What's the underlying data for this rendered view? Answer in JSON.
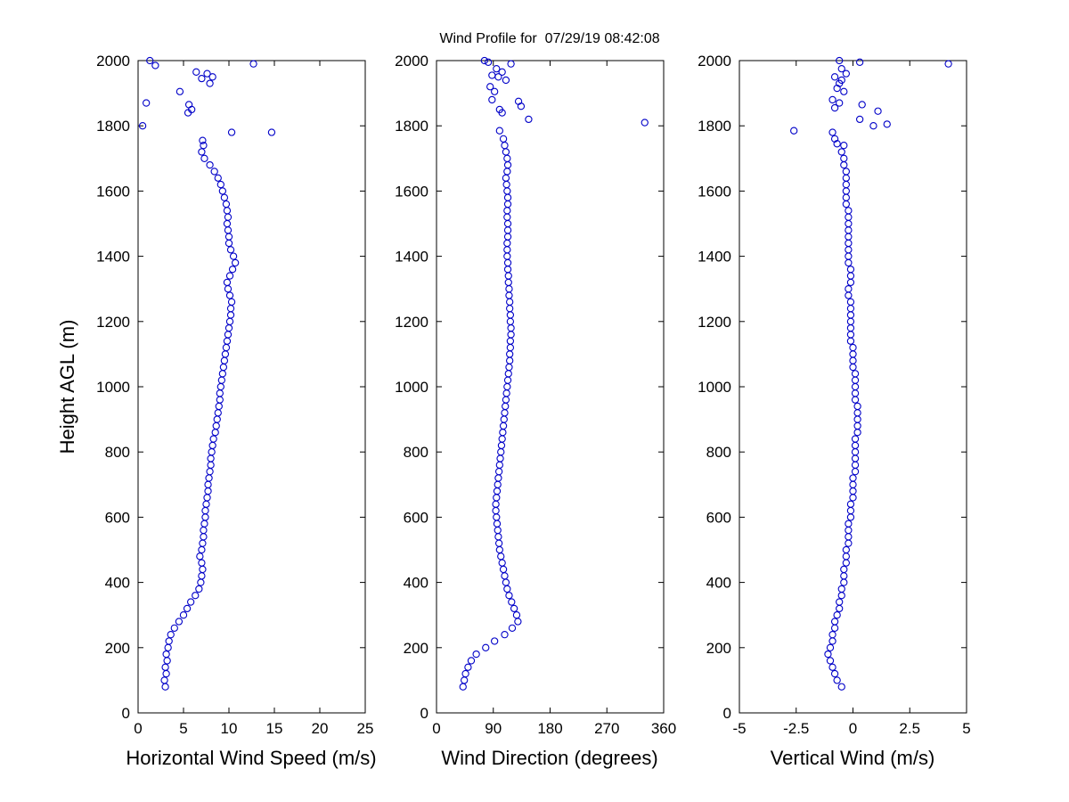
{
  "figure": {
    "title": "Wind Profile for  07/29/19 08:42:08",
    "ylabel": "Height AGL (m)"
  },
  "chart_data": [
    {
      "type": "scatter",
      "xlabel": "Horizontal Wind Speed (m/s)",
      "ylabel": "Height AGL (m)",
      "xlim": [
        0,
        25
      ],
      "ylim": [
        0,
        2000
      ],
      "xticks": [
        0,
        5,
        10,
        15,
        20,
        25
      ],
      "yticks": [
        0,
        200,
        400,
        600,
        800,
        1000,
        1200,
        1400,
        1600,
        1800,
        2000
      ],
      "marker": "open-circle",
      "marker_color": "#0000C8",
      "points": [
        [
          3.0,
          80
        ],
        [
          2.9,
          100
        ],
        [
          3.1,
          120
        ],
        [
          3.0,
          140
        ],
        [
          3.2,
          160
        ],
        [
          3.1,
          180
        ],
        [
          3.3,
          200
        ],
        [
          3.4,
          220
        ],
        [
          3.6,
          240
        ],
        [
          4.0,
          260
        ],
        [
          4.5,
          280
        ],
        [
          5.0,
          300
        ],
        [
          5.4,
          320
        ],
        [
          5.8,
          340
        ],
        [
          6.3,
          360
        ],
        [
          6.7,
          380
        ],
        [
          6.9,
          400
        ],
        [
          7.0,
          420
        ],
        [
          7.1,
          440
        ],
        [
          7.0,
          460
        ],
        [
          6.8,
          480
        ],
        [
          7.0,
          500
        ],
        [
          7.1,
          520
        ],
        [
          7.2,
          540
        ],
        [
          7.2,
          560
        ],
        [
          7.3,
          580
        ],
        [
          7.4,
          600
        ],
        [
          7.4,
          620
        ],
        [
          7.5,
          640
        ],
        [
          7.6,
          660
        ],
        [
          7.7,
          680
        ],
        [
          7.7,
          700
        ],
        [
          7.8,
          720
        ],
        [
          7.9,
          740
        ],
        [
          8.0,
          760
        ],
        [
          8.0,
          780
        ],
        [
          8.1,
          800
        ],
        [
          8.2,
          820
        ],
        [
          8.3,
          840
        ],
        [
          8.5,
          860
        ],
        [
          8.6,
          880
        ],
        [
          8.7,
          900
        ],
        [
          8.8,
          920
        ],
        [
          8.9,
          940
        ],
        [
          9.0,
          960
        ],
        [
          9.0,
          980
        ],
        [
          9.1,
          1000
        ],
        [
          9.2,
          1020
        ],
        [
          9.3,
          1040
        ],
        [
          9.4,
          1060
        ],
        [
          9.5,
          1080
        ],
        [
          9.6,
          1100
        ],
        [
          9.7,
          1120
        ],
        [
          9.8,
          1140
        ],
        [
          9.9,
          1160
        ],
        [
          10.0,
          1180
        ],
        [
          10.1,
          1200
        ],
        [
          10.2,
          1220
        ],
        [
          10.2,
          1240
        ],
        [
          10.3,
          1260
        ],
        [
          10.1,
          1280
        ],
        [
          9.9,
          1300
        ],
        [
          9.8,
          1320
        ],
        [
          10.1,
          1340
        ],
        [
          10.4,
          1360
        ],
        [
          10.7,
          1380
        ],
        [
          10.5,
          1400
        ],
        [
          10.2,
          1420
        ],
        [
          10.0,
          1440
        ],
        [
          10.0,
          1460
        ],
        [
          9.9,
          1480
        ],
        [
          9.8,
          1500
        ],
        [
          9.9,
          1520
        ],
        [
          9.8,
          1540
        ],
        [
          9.7,
          1560
        ],
        [
          9.5,
          1580
        ],
        [
          9.3,
          1600
        ],
        [
          9.1,
          1620
        ],
        [
          8.8,
          1640
        ],
        [
          8.4,
          1660
        ],
        [
          7.9,
          1680
        ],
        [
          7.3,
          1700
        ],
        [
          7.0,
          1720
        ],
        [
          7.2,
          1740
        ],
        [
          7.1,
          1755
        ],
        [
          10.3,
          1780
        ],
        [
          14.7,
          1780
        ],
        [
          0.5,
          1800
        ],
        [
          5.5,
          1840
        ],
        [
          5.9,
          1850
        ],
        [
          5.6,
          1865
        ],
        [
          0.9,
          1870
        ],
        [
          4.6,
          1905
        ],
        [
          7.9,
          1930
        ],
        [
          7.0,
          1945
        ],
        [
          8.2,
          1950
        ],
        [
          7.6,
          1960
        ],
        [
          6.4,
          1965
        ],
        [
          12.7,
          1990
        ],
        [
          1.9,
          1985
        ],
        [
          1.3,
          2000
        ]
      ]
    },
    {
      "type": "scatter",
      "xlabel": "Wind Direction (degrees)",
      "ylabel": "Height AGL (m)",
      "xlim": [
        0,
        360
      ],
      "ylim": [
        0,
        2000
      ],
      "xticks": [
        0,
        90,
        180,
        270,
        360
      ],
      "yticks": [
        0,
        200,
        400,
        600,
        800,
        1000,
        1200,
        1400,
        1600,
        1800,
        2000
      ],
      "marker": "open-circle",
      "marker_color": "#0000C8",
      "points": [
        [
          42,
          80
        ],
        [
          44,
          100
        ],
        [
          46,
          120
        ],
        [
          50,
          140
        ],
        [
          55,
          160
        ],
        [
          63,
          180
        ],
        [
          78,
          200
        ],
        [
          92,
          220
        ],
        [
          108,
          240
        ],
        [
          120,
          260
        ],
        [
          129,
          280
        ],
        [
          127,
          300
        ],
        [
          123,
          320
        ],
        [
          119,
          340
        ],
        [
          115,
          360
        ],
        [
          112,
          380
        ],
        [
          110,
          400
        ],
        [
          108,
          420
        ],
        [
          106,
          440
        ],
        [
          104,
          460
        ],
        [
          102,
          480
        ],
        [
          100,
          500
        ],
        [
          99,
          520
        ],
        [
          98,
          540
        ],
        [
          97,
          560
        ],
        [
          96,
          580
        ],
        [
          95,
          600
        ],
        [
          94,
          620
        ],
        [
          94,
          640
        ],
        [
          95,
          660
        ],
        [
          96,
          680
        ],
        [
          97,
          700
        ],
        [
          98,
          720
        ],
        [
          99,
          740
        ],
        [
          100,
          760
        ],
        [
          101,
          780
        ],
        [
          102,
          800
        ],
        [
          103,
          820
        ],
        [
          104,
          840
        ],
        [
          105,
          860
        ],
        [
          106,
          880
        ],
        [
          107,
          900
        ],
        [
          108,
          920
        ],
        [
          109,
          940
        ],
        [
          110,
          960
        ],
        [
          111,
          980
        ],
        [
          112,
          1000
        ],
        [
          113,
          1020
        ],
        [
          114,
          1040
        ],
        [
          115,
          1060
        ],
        [
          116,
          1080
        ],
        [
          116,
          1100
        ],
        [
          117,
          1120
        ],
        [
          117,
          1140
        ],
        [
          118,
          1160
        ],
        [
          118,
          1180
        ],
        [
          117,
          1200
        ],
        [
          117,
          1220
        ],
        [
          116,
          1240
        ],
        [
          116,
          1260
        ],
        [
          115,
          1280
        ],
        [
          115,
          1300
        ],
        [
          114,
          1320
        ],
        [
          114,
          1340
        ],
        [
          113,
          1360
        ],
        [
          113,
          1380
        ],
        [
          112,
          1400
        ],
        [
          112,
          1420
        ],
        [
          112,
          1440
        ],
        [
          113,
          1460
        ],
        [
          113,
          1480
        ],
        [
          113,
          1500
        ],
        [
          112,
          1520
        ],
        [
          112,
          1540
        ],
        [
          113,
          1560
        ],
        [
          113,
          1580
        ],
        [
          112,
          1600
        ],
        [
          111,
          1620
        ],
        [
          110,
          1640
        ],
        [
          112,
          1660
        ],
        [
          113,
          1680
        ],
        [
          112,
          1700
        ],
        [
          110,
          1720
        ],
        [
          108,
          1740
        ],
        [
          106,
          1760
        ],
        [
          100,
          1785
        ],
        [
          330,
          1810
        ],
        [
          146,
          1820
        ],
        [
          104,
          1840
        ],
        [
          100,
          1850
        ],
        [
          134,
          1860
        ],
        [
          130,
          1875
        ],
        [
          88,
          1880
        ],
        [
          92,
          1905
        ],
        [
          85,
          1920
        ],
        [
          110,
          1940
        ],
        [
          98,
          1950
        ],
        [
          88,
          1955
        ],
        [
          104,
          1965
        ],
        [
          95,
          1975
        ],
        [
          118,
          1990
        ],
        [
          82,
          1995
        ],
        [
          76,
          2000
        ]
      ]
    },
    {
      "type": "scatter",
      "xlabel": "Vertical Wind (m/s)",
      "ylabel": "Height AGL (m)",
      "xlim": [
        -5,
        5
      ],
      "ylim": [
        0,
        2000
      ],
      "xticks": [
        -5,
        -2.5,
        0,
        2.5,
        5
      ],
      "yticks": [
        0,
        200,
        400,
        600,
        800,
        1000,
        1200,
        1400,
        1600,
        1800,
        2000
      ],
      "marker": "open-circle",
      "marker_color": "#0000C8",
      "points": [
        [
          -0.5,
          80
        ],
        [
          -0.7,
          100
        ],
        [
          -0.8,
          120
        ],
        [
          -0.9,
          140
        ],
        [
          -1.0,
          160
        ],
        [
          -1.1,
          180
        ],
        [
          -1.0,
          200
        ],
        [
          -0.9,
          220
        ],
        [
          -0.9,
          240
        ],
        [
          -0.8,
          260
        ],
        [
          -0.8,
          280
        ],
        [
          -0.7,
          300
        ],
        [
          -0.6,
          320
        ],
        [
          -0.6,
          340
        ],
        [
          -0.5,
          360
        ],
        [
          -0.5,
          380
        ],
        [
          -0.4,
          400
        ],
        [
          -0.4,
          420
        ],
        [
          -0.4,
          440
        ],
        [
          -0.3,
          460
        ],
        [
          -0.3,
          480
        ],
        [
          -0.3,
          500
        ],
        [
          -0.2,
          520
        ],
        [
          -0.2,
          540
        ],
        [
          -0.2,
          560
        ],
        [
          -0.2,
          580
        ],
        [
          -0.1,
          600
        ],
        [
          -0.1,
          620
        ],
        [
          -0.1,
          640
        ],
        [
          0.0,
          660
        ],
        [
          0.0,
          680
        ],
        [
          0.0,
          700
        ],
        [
          0.0,
          720
        ],
        [
          0.1,
          740
        ],
        [
          0.1,
          760
        ],
        [
          0.1,
          780
        ],
        [
          0.1,
          800
        ],
        [
          0.1,
          820
        ],
        [
          0.1,
          840
        ],
        [
          0.2,
          860
        ],
        [
          0.2,
          880
        ],
        [
          0.2,
          900
        ],
        [
          0.2,
          920
        ],
        [
          0.2,
          940
        ],
        [
          0.1,
          960
        ],
        [
          0.1,
          980
        ],
        [
          0.1,
          1000
        ],
        [
          0.1,
          1020
        ],
        [
          0.1,
          1040
        ],
        [
          0.0,
          1060
        ],
        [
          0.0,
          1080
        ],
        [
          0.0,
          1100
        ],
        [
          0.0,
          1120
        ],
        [
          -0.1,
          1140
        ],
        [
          -0.1,
          1160
        ],
        [
          -0.1,
          1180
        ],
        [
          -0.1,
          1200
        ],
        [
          -0.1,
          1220
        ],
        [
          -0.1,
          1240
        ],
        [
          -0.1,
          1260
        ],
        [
          -0.2,
          1280
        ],
        [
          -0.2,
          1300
        ],
        [
          -0.1,
          1320
        ],
        [
          -0.1,
          1340
        ],
        [
          -0.1,
          1360
        ],
        [
          -0.2,
          1380
        ],
        [
          -0.2,
          1400
        ],
        [
          -0.2,
          1420
        ],
        [
          -0.2,
          1440
        ],
        [
          -0.2,
          1460
        ],
        [
          -0.2,
          1480
        ],
        [
          -0.2,
          1500
        ],
        [
          -0.2,
          1520
        ],
        [
          -0.2,
          1540
        ],
        [
          -0.3,
          1560
        ],
        [
          -0.3,
          1580
        ],
        [
          -0.3,
          1600
        ],
        [
          -0.3,
          1620
        ],
        [
          -0.3,
          1640
        ],
        [
          -0.3,
          1660
        ],
        [
          -0.4,
          1680
        ],
        [
          -0.4,
          1700
        ],
        [
          -0.5,
          1720
        ],
        [
          -0.4,
          1740
        ],
        [
          -0.7,
          1745
        ],
        [
          -0.8,
          1760
        ],
        [
          -0.9,
          1780
        ],
        [
          -2.6,
          1785
        ],
        [
          0.9,
          1800
        ],
        [
          1.5,
          1805
        ],
        [
          0.3,
          1820
        ],
        [
          1.1,
          1845
        ],
        [
          -0.8,
          1855
        ],
        [
          0.4,
          1865
        ],
        [
          -0.6,
          1870
        ],
        [
          -0.9,
          1880
        ],
        [
          -0.4,
          1905
        ],
        [
          -0.7,
          1915
        ],
        [
          -0.6,
          1930
        ],
        [
          -0.5,
          1940
        ],
        [
          -0.8,
          1950
        ],
        [
          -0.3,
          1960
        ],
        [
          -0.5,
          1975
        ],
        [
          4.2,
          1990
        ],
        [
          0.3,
          1995
        ],
        [
          -0.6,
          2000
        ]
      ]
    }
  ]
}
